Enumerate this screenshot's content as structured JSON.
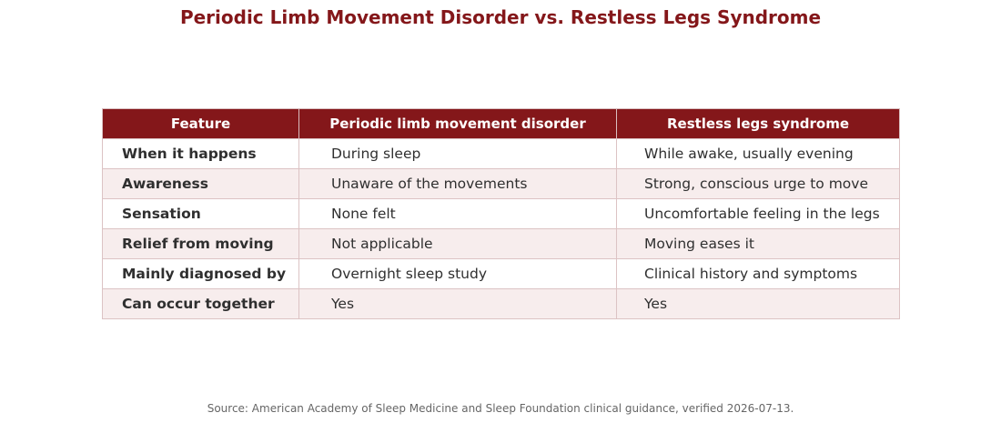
{
  "title": "Periodic Limb Movement Disorder vs. Restless Legs Syndrome",
  "table": {
    "headers": [
      "Feature",
      "Periodic limb movement disorder",
      "Restless legs syndrome"
    ],
    "rows": [
      [
        "When it happens",
        "During sleep",
        "While awake, usually evening"
      ],
      [
        "Awareness",
        "Unaware of the movements",
        "Strong, conscious urge to move"
      ],
      [
        "Sensation",
        "None felt",
        "Uncomfortable feeling in the legs"
      ],
      [
        "Relief from moving",
        "Not applicable",
        "Moving eases it"
      ],
      [
        "Mainly diagnosed by",
        "Overnight sleep study",
        "Clinical history and symptoms"
      ],
      [
        "Can occur together",
        "Yes",
        "Yes"
      ]
    ]
  },
  "source": "Source: American Academy of Sleep Medicine and Sleep Foundation clinical guidance, verified 2026-07-13.",
  "colors": {
    "header_bg": "#84171a",
    "title": "#84171a",
    "stripe": "#f7eded",
    "border": "#dcc3c4"
  }
}
